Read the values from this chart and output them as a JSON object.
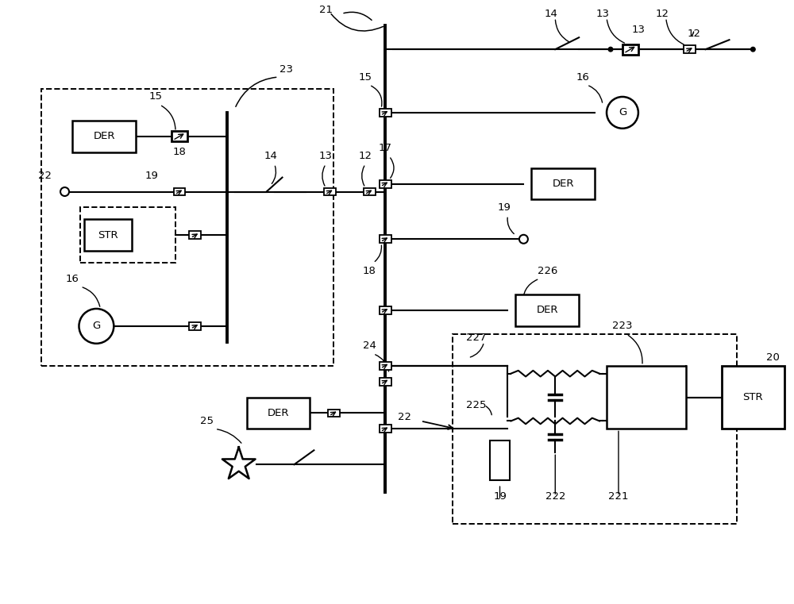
{
  "bg_color": "#ffffff",
  "lw": 1.5,
  "tlw": 2.8,
  "fs": 9.5,
  "figsize": [
    10.0,
    7.61
  ],
  "dpi": 100,
  "xlim": [
    0,
    100
  ],
  "ylim": [
    0,
    76.1
  ]
}
